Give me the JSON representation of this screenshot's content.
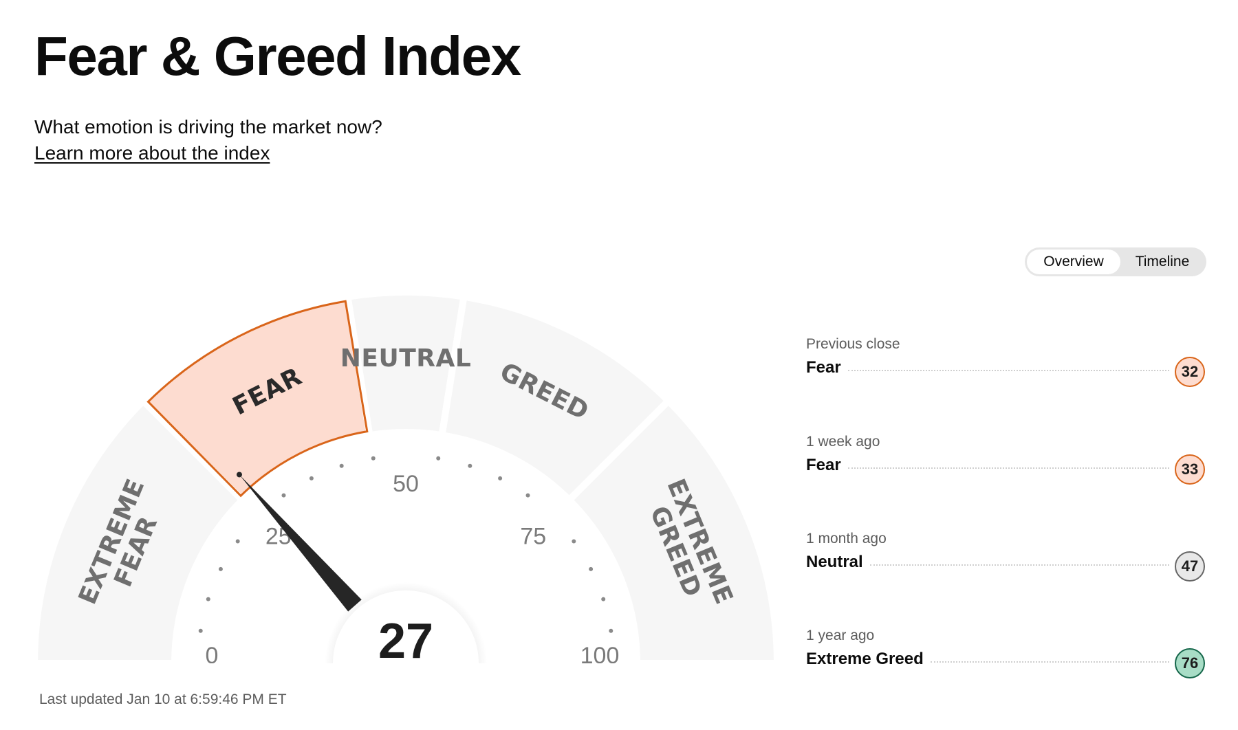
{
  "header": {
    "title": "Fear & Greed Index",
    "subtitle": "What emotion is driving the market now?",
    "learn_link": "Learn more about the index"
  },
  "gauge": {
    "value": 27,
    "value_text": "27",
    "min": 0,
    "max": 100,
    "active_segment": "fear",
    "ticks": [
      "0",
      "25",
      "50",
      "75",
      "100"
    ],
    "segments": [
      {
        "key": "extreme-fear",
        "label_lines": [
          "EXTREME",
          "FEAR"
        ],
        "range": [
          0,
          25
        ]
      },
      {
        "key": "fear",
        "label_lines": [
          "FEAR"
        ],
        "range": [
          25,
          45
        ]
      },
      {
        "key": "neutral",
        "label_lines": [
          "NEUTRAL"
        ],
        "range": [
          45,
          55
        ]
      },
      {
        "key": "greed",
        "label_lines": [
          "GREED"
        ],
        "range": [
          55,
          75
        ]
      },
      {
        "key": "extreme-greed",
        "label_lines": [
          "EXTREME",
          "GREED"
        ],
        "range": [
          75,
          100
        ]
      }
    ],
    "colors": {
      "segment": "#f6f6f6",
      "active_fill": "#fddcd0",
      "active_stroke": "#d9651a",
      "needle": "#262626"
    }
  },
  "last_updated": "Last updated Jan 10 at 6:59:46 PM ET",
  "view_toggle": {
    "overview": "Overview",
    "timeline": "Timeline",
    "selected": "Overview"
  },
  "history": [
    {
      "when": "Previous close",
      "label": "Fear",
      "value": "32",
      "rating": "fear"
    },
    {
      "when": "1 week ago",
      "label": "Fear",
      "value": "33",
      "rating": "fear"
    },
    {
      "when": "1 month ago",
      "label": "Neutral",
      "value": "47",
      "rating": "neutral"
    },
    {
      "when": "1 year ago",
      "label": "Extreme Greed",
      "value": "76",
      "rating": "extreme-greed"
    }
  ]
}
